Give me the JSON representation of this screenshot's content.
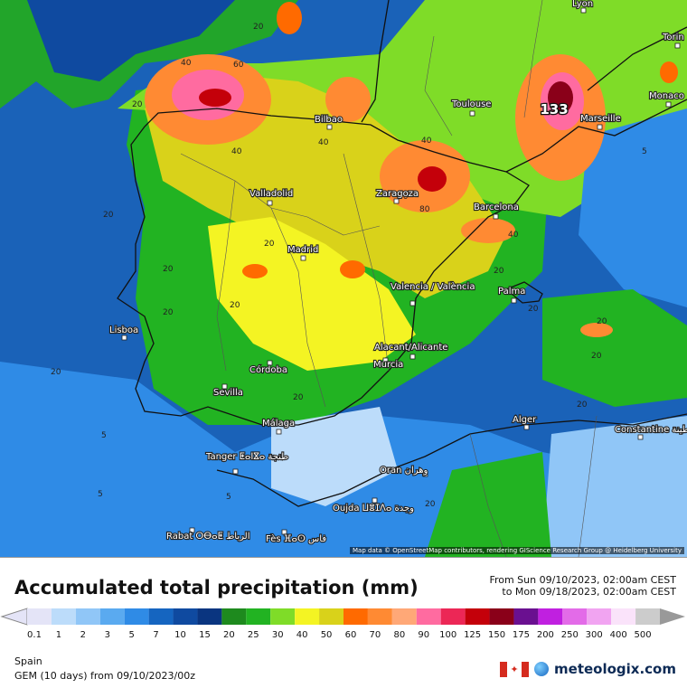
{
  "map": {
    "cities": [
      {
        "name": "Lyon"
      },
      {
        "name": "Torin"
      },
      {
        "name": "Monaco"
      },
      {
        "name": "Marseille"
      },
      {
        "name": "Toulouse"
      },
      {
        "name": "Bilbao"
      },
      {
        "name": "Valladolid"
      },
      {
        "name": "Zaragoza"
      },
      {
        "name": "Barcelona"
      },
      {
        "name": "Madrid"
      },
      {
        "name": "Valencia / València"
      },
      {
        "name": "Palma"
      },
      {
        "name": "Lisboa"
      },
      {
        "name": "Alacant/Alicante"
      },
      {
        "name": "Murcia"
      },
      {
        "name": "Córdoba"
      },
      {
        "name": "Sevilla"
      },
      {
        "name": "Málaga"
      },
      {
        "name": "Alger"
      },
      {
        "name": "Constantine قسنطينة"
      },
      {
        "name": "Tanger ⵟⴰⵏⴵⴰ طنجة"
      },
      {
        "name": "Oran وهران"
      },
      {
        "name": "Oujda ⵡⴻⵊⴷⴰ وجدة"
      },
      {
        "name": "Rabat ⵔⴱⴰⵟ الرباط"
      },
      {
        "name": "Fès ⴼⴰⵙ فاس"
      }
    ],
    "max_value_label": "133",
    "contour_labels": [
      "40",
      "60",
      "20",
      "40",
      "20",
      "20",
      "20",
      "40",
      "40",
      "80",
      "40",
      "20",
      "20",
      "20",
      "20",
      "20",
      "20",
      "20",
      "20",
      "20",
      "5",
      "5",
      "20",
      "20",
      "20",
      "5",
      "5"
    ],
    "attribution": "Map data © OpenStreetMap contributors, rendering GIScience Research Group @ Heidelberg University"
  },
  "legend": {
    "title": "Accumulated total precipitation (mm)",
    "from": "From Sun 09/10/2023, 02:00am CEST",
    "to": "to Mon 09/18/2023, 02:00am CEST",
    "bins": [
      {
        "label": "0.1",
        "color": "#e4e4f7"
      },
      {
        "label": "1",
        "color": "#bcdcfa"
      },
      {
        "label": "2",
        "color": "#90c6f7"
      },
      {
        "label": "3",
        "color": "#5aaaf0"
      },
      {
        "label": "5",
        "color": "#2f8be6"
      },
      {
        "label": "7",
        "color": "#1565c0"
      },
      {
        "label": "10",
        "color": "#0f4aa0"
      },
      {
        "label": "15",
        "color": "#0a3580"
      },
      {
        "label": "20",
        "color": "#1e8a1e"
      },
      {
        "label": "25",
        "color": "#22b322"
      },
      {
        "label": "30",
        "color": "#7fdc28"
      },
      {
        "label": "40",
        "color": "#f4f423"
      },
      {
        "label": "50",
        "color": "#d9d21a"
      },
      {
        "label": "60",
        "color": "#ff6a00"
      },
      {
        "label": "70",
        "color": "#ff8a33"
      },
      {
        "label": "80",
        "color": "#ffa877"
      },
      {
        "label": "90",
        "color": "#ff6ba0"
      },
      {
        "label": "100",
        "color": "#ec2756"
      },
      {
        "label": "125",
        "color": "#c4000a"
      },
      {
        "label": "150",
        "color": "#8a0019"
      },
      {
        "label": "175",
        "color": "#6a1090"
      },
      {
        "label": "200",
        "color": "#c020e0"
      },
      {
        "label": "250",
        "color": "#e36be8"
      },
      {
        "label": "300",
        "color": "#f1a4f1"
      },
      {
        "label": "400",
        "color": "#fae3fa"
      },
      {
        "label": "500",
        "color": "#cccccc"
      }
    ],
    "region": "Spain",
    "model": "GEM (10 days) from 09/10/2023/00z",
    "brand": "meteologix.com"
  }
}
